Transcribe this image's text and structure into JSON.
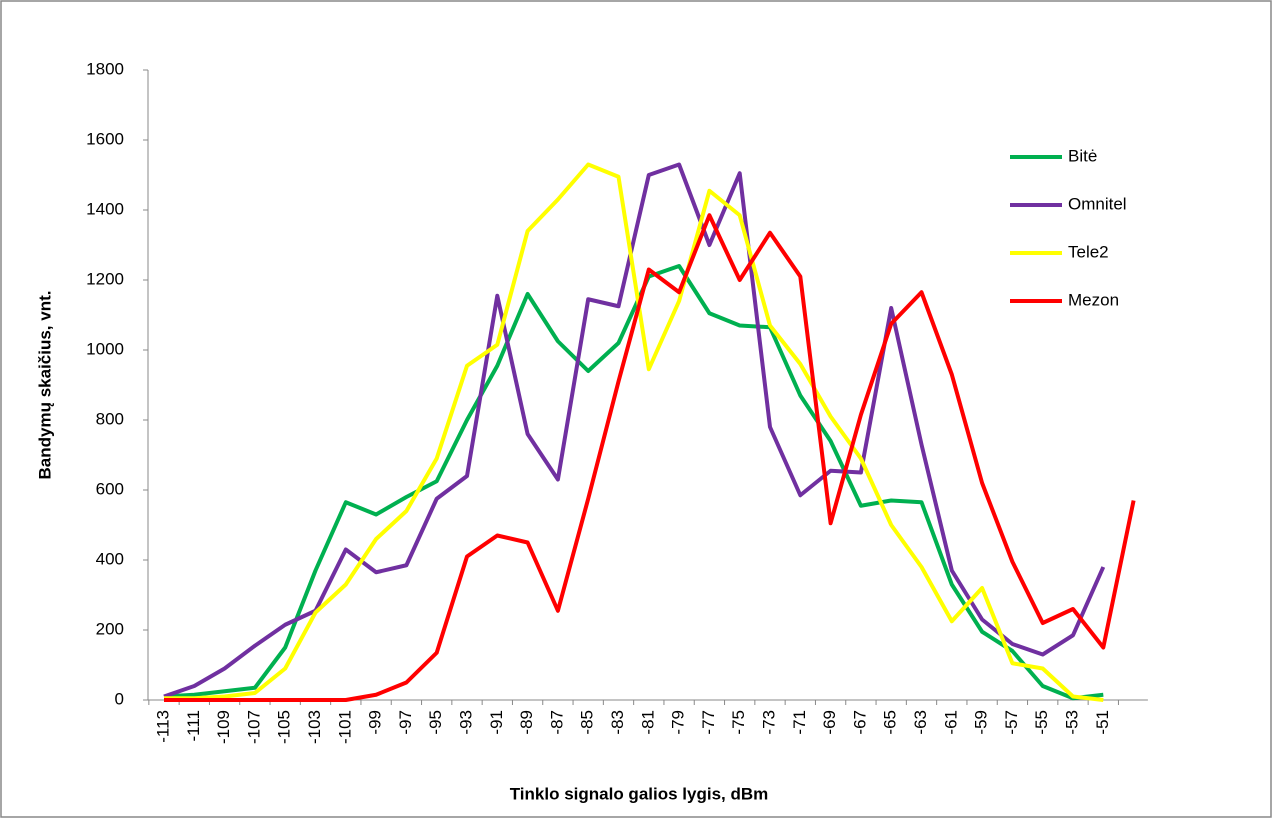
{
  "chart_data": {
    "type": "line",
    "y_label": "Bandymų skaičius, vnt.",
    "x_label": "Tinklo signalo galios lygis, dBm",
    "categories": [
      "-113",
      "-111",
      "-109",
      "-107",
      "-105",
      "-103",
      "-101",
      "-99",
      "-97",
      "-95",
      "-93",
      "-91",
      "-89",
      "-87",
      "-85",
      "-83",
      "-81",
      "-79",
      "-77",
      "-75",
      "-73",
      "-71",
      "-69",
      "-67",
      "-65",
      "-63",
      "-61",
      "-59",
      "-57",
      "-55",
      "-53",
      "-51",
      null
    ],
    "series": [
      {
        "name": "Bitė",
        "color": "#00b050",
        "values": [
          10,
          15,
          25,
          35,
          150,
          370,
          565,
          530,
          580,
          625,
          800,
          955,
          1160,
          1025,
          940,
          1020,
          1210,
          1240,
          1105,
          1070,
          1065,
          870,
          740,
          555,
          570,
          565,
          330,
          195,
          140,
          40,
          5,
          15,
          null
        ]
      },
      {
        "name": "Omnitel",
        "color": "#7030a0",
        "values": [
          10,
          40,
          90,
          155,
          215,
          255,
          430,
          365,
          385,
          575,
          640,
          1155,
          760,
          630,
          1145,
          1125,
          1500,
          1530,
          1300,
          1505,
          780,
          585,
          655,
          650,
          1120,
          730,
          370,
          230,
          160,
          130,
          185,
          380,
          null
        ]
      },
      {
        "name": "Tele2",
        "color": "#ffff00",
        "values": [
          5,
          5,
          10,
          20,
          90,
          250,
          330,
          460,
          540,
          690,
          955,
          1015,
          1340,
          1430,
          1530,
          1495,
          945,
          1140,
          1455,
          1385,
          1070,
          960,
          810,
          690,
          500,
          380,
          225,
          320,
          105,
          90,
          10,
          0,
          null
        ]
      },
      {
        "name": "Mezon",
        "color": "#ff0000",
        "values": [
          0,
          0,
          0,
          0,
          0,
          0,
          0,
          15,
          50,
          135,
          410,
          470,
          450,
          255,
          575,
          910,
          1230,
          1165,
          1385,
          1200,
          1335,
          1210,
          505,
          815,
          1075,
          1165,
          930,
          620,
          395,
          220,
          260,
          150,
          570
        ]
      }
    ],
    "ylim": [
      0,
      1800
    ],
    "yticks": [
      0,
      200,
      400,
      600,
      800,
      1000,
      1200,
      1400,
      1600,
      1800
    ],
    "grid": false,
    "legend": "right"
  }
}
